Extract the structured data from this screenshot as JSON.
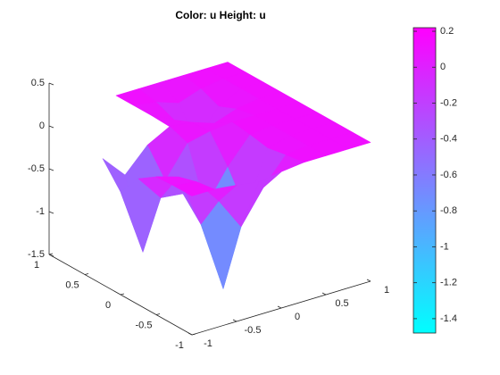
{
  "chart_data": {
    "type": "surface",
    "title": "Color: u  Height: u",
    "x": [
      -1,
      -0.75,
      -0.5,
      -0.25,
      0,
      0.25,
      0.5,
      0.75,
      1
    ],
    "y": [
      -1,
      -0.75,
      -0.5,
      -0.25,
      0,
      0.25,
      0.5,
      0.75,
      1
    ],
    "z": [
      [
        0.12,
        0.12,
        0.09,
        0.05,
        0.09,
        0.12,
        0.12,
        0.12,
        0.12
      ],
      [
        0.12,
        0.09,
        -0.21,
        -0.59,
        -0.21,
        0.09,
        0.12,
        0.12,
        0.12
      ],
      [
        0.11,
        0.03,
        -0.6,
        -1.43,
        -0.59,
        0.05,
        0.12,
        0.12,
        0.12
      ],
      [
        -0.03,
        -0.33,
        -0.36,
        -0.6,
        -0.21,
        0.09,
        0.12,
        0.12,
        0.12
      ],
      [
        -0.3,
        -1.08,
        -0.33,
        0.03,
        0.09,
        0.12,
        0.12,
        0.12,
        0.12
      ],
      [
        -0.03,
        -0.3,
        -0.03,
        0.11,
        0.08,
        -0.01,
        0.08,
        0.12,
        0.12
      ],
      [
        null,
        null,
        null,
        0.12,
        -0.01,
        -0.33,
        -0.01,
        0.12,
        0.12
      ],
      [
        null,
        null,
        null,
        0.12,
        0.08,
        -0.01,
        0.08,
        0.12,
        0.12
      ],
      [
        null,
        null,
        null,
        0.12,
        0.12,
        0.12,
        0.12,
        0.12,
        0.12
      ]
    ],
    "xlim": [
      -1,
      1
    ],
    "ylim": [
      -1,
      1
    ],
    "zlim": [
      -1.5,
      0.5
    ],
    "xticks": [
      -1,
      -0.5,
      0,
      0.5,
      1
    ],
    "yticks": [
      -1,
      -0.5,
      0,
      0.5,
      1
    ],
    "zticks": [
      -1.5,
      -1,
      -0.5,
      0,
      0.5
    ],
    "colormap": [
      "#00ffff",
      "#ff00ff"
    ],
    "clim": [
      -1.48,
      0.22
    ],
    "cticks": [
      -1.4,
      -1.2,
      -1,
      -0.8,
      -0.6,
      -0.4,
      -0.2,
      0,
      0.2
    ]
  }
}
